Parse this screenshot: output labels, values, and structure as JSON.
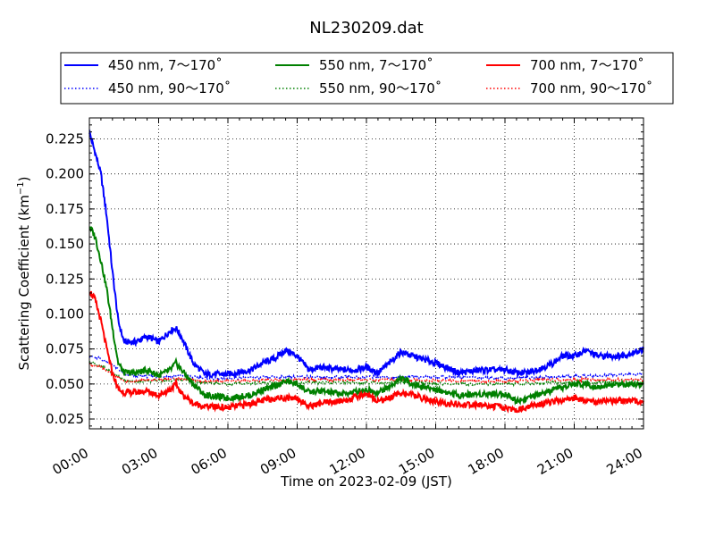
{
  "chart_data": {
    "type": "line",
    "title": "NL230209.dat",
    "xlabel": "Time on 2023-02-09 (JST)",
    "ylabel": "Scattering Coefficient (km",
    "ylabel_sup": "−1",
    "ylabel_close": ")",
    "xlim": [
      0,
      24
    ],
    "ylim": [
      0.018,
      0.24
    ],
    "x_ticks": [
      {
        "value": 0,
        "label": "00:00"
      },
      {
        "value": 3,
        "label": "03:00"
      },
      {
        "value": 6,
        "label": "06:00"
      },
      {
        "value": 9,
        "label": "09:00"
      },
      {
        "value": 12,
        "label": "12:00"
      },
      {
        "value": 15,
        "label": "15:00"
      },
      {
        "value": 18,
        "label": "18:00"
      },
      {
        "value": 21,
        "label": "21:00"
      },
      {
        "value": 24,
        "label": "24:00"
      }
    ],
    "y_ticks": [
      {
        "value": 0.025,
        "label": "0.025"
      },
      {
        "value": 0.05,
        "label": "0.050"
      },
      {
        "value": 0.075,
        "label": "0.075"
      },
      {
        "value": 0.1,
        "label": "0.100"
      },
      {
        "value": 0.125,
        "label": "0.125"
      },
      {
        "value": 0.15,
        "label": "0.150"
      },
      {
        "value": 0.175,
        "label": "0.175"
      },
      {
        "value": 0.2,
        "label": "0.200"
      },
      {
        "value": 0.225,
        "label": "0.225"
      }
    ],
    "grid": true,
    "legend_position": "top",
    "series": [
      {
        "name": "450 nm, 7～170˚",
        "color": "#0000ff",
        "style": "solid",
        "x": [
          0,
          0.25,
          0.5,
          0.75,
          1,
          1.25,
          1.5,
          2,
          2.5,
          3,
          3.5,
          3.75,
          4,
          4.5,
          5,
          6,
          7,
          7.5,
          8,
          8.5,
          9,
          9.5,
          10,
          11,
          11.5,
          12,
          12.5,
          13,
          13.5,
          14,
          15,
          16,
          17,
          18,
          18.5,
          19,
          20,
          20.5,
          21,
          21.5,
          22,
          23,
          23.5,
          24
        ],
        "y": [
          0.23,
          0.215,
          0.2,
          0.17,
          0.13,
          0.095,
          0.08,
          0.08,
          0.084,
          0.08,
          0.088,
          0.09,
          0.083,
          0.065,
          0.057,
          0.057,
          0.06,
          0.065,
          0.068,
          0.074,
          0.07,
          0.06,
          0.062,
          0.06,
          0.06,
          0.062,
          0.058,
          0.065,
          0.073,
          0.07,
          0.065,
          0.058,
          0.06,
          0.06,
          0.058,
          0.058,
          0.064,
          0.07,
          0.07,
          0.074,
          0.07,
          0.07,
          0.072,
          0.075
        ]
      },
      {
        "name": "450 nm, 90～170˚",
        "color": "#0000ff",
        "style": "dotted",
        "x": [
          0,
          0.5,
          1,
          1.5,
          2,
          3,
          4,
          5,
          6,
          8,
          10,
          12,
          14,
          16,
          18,
          20,
          22,
          24
        ],
        "y": [
          0.07,
          0.068,
          0.064,
          0.057,
          0.056,
          0.055,
          0.056,
          0.054,
          0.054,
          0.055,
          0.055,
          0.055,
          0.055,
          0.055,
          0.054,
          0.055,
          0.056,
          0.057
        ]
      },
      {
        "name": "550 nm, 7～170˚",
        "color": "#008000",
        "style": "solid",
        "x": [
          0,
          0.25,
          0.5,
          0.75,
          1,
          1.25,
          1.5,
          2,
          2.5,
          3,
          3.5,
          3.75,
          4,
          4.5,
          5,
          6,
          7,
          7.5,
          8,
          8.5,
          9,
          9.5,
          10,
          11,
          12,
          12.5,
          13,
          13.5,
          14,
          15,
          16,
          17,
          18,
          18.5,
          19,
          20,
          21,
          21.5,
          22,
          23,
          24
        ],
        "y": [
          0.163,
          0.155,
          0.138,
          0.118,
          0.09,
          0.065,
          0.058,
          0.058,
          0.06,
          0.056,
          0.06,
          0.065,
          0.06,
          0.05,
          0.042,
          0.04,
          0.042,
          0.046,
          0.048,
          0.052,
          0.05,
          0.044,
          0.045,
          0.043,
          0.046,
          0.044,
          0.048,
          0.054,
          0.05,
          0.046,
          0.042,
          0.043,
          0.043,
          0.038,
          0.04,
          0.045,
          0.05,
          0.05,
          0.048,
          0.05,
          0.05
        ]
      },
      {
        "name": "550 nm, 90～170˚",
        "color": "#008000",
        "style": "dotted",
        "x": [
          0,
          0.5,
          1,
          1.5,
          2,
          3,
          4,
          5,
          6,
          8,
          10,
          12,
          14,
          16,
          18,
          20,
          22,
          24
        ],
        "y": [
          0.066,
          0.063,
          0.058,
          0.053,
          0.052,
          0.052,
          0.053,
          0.051,
          0.05,
          0.051,
          0.051,
          0.051,
          0.051,
          0.05,
          0.05,
          0.051,
          0.051,
          0.051
        ]
      },
      {
        "name": "700 nm, 7～170˚",
        "color": "#ff0000",
        "style": "solid",
        "x": [
          0,
          0.25,
          0.5,
          0.75,
          1,
          1.25,
          1.5,
          2,
          2.5,
          3,
          3.5,
          3.75,
          4,
          4.5,
          5,
          6,
          7,
          8,
          9,
          9.5,
          10,
          11,
          12,
          12.5,
          13,
          13.5,
          14,
          15,
          16,
          17,
          18,
          18.5,
          19,
          20,
          21,
          22,
          23,
          24
        ],
        "y": [
          0.117,
          0.11,
          0.095,
          0.075,
          0.058,
          0.046,
          0.044,
          0.044,
          0.045,
          0.042,
          0.046,
          0.05,
          0.043,
          0.036,
          0.034,
          0.033,
          0.036,
          0.04,
          0.04,
          0.034,
          0.036,
          0.038,
          0.043,
          0.038,
          0.04,
          0.044,
          0.042,
          0.037,
          0.035,
          0.035,
          0.033,
          0.031,
          0.034,
          0.037,
          0.04,
          0.037,
          0.038,
          0.038
        ]
      },
      {
        "name": "700 nm, 90～170˚",
        "color": "#ff0000",
        "style": "dotted",
        "x": [
          0,
          0.5,
          1,
          1.5,
          2,
          3,
          4,
          5,
          6,
          8,
          10,
          12,
          14,
          16,
          18,
          20,
          22,
          24
        ],
        "y": [
          0.064,
          0.062,
          0.057,
          0.052,
          0.052,
          0.053,
          0.054,
          0.052,
          0.052,
          0.053,
          0.053,
          0.053,
          0.053,
          0.052,
          0.052,
          0.053,
          0.053,
          0.053
        ]
      }
    ]
  }
}
